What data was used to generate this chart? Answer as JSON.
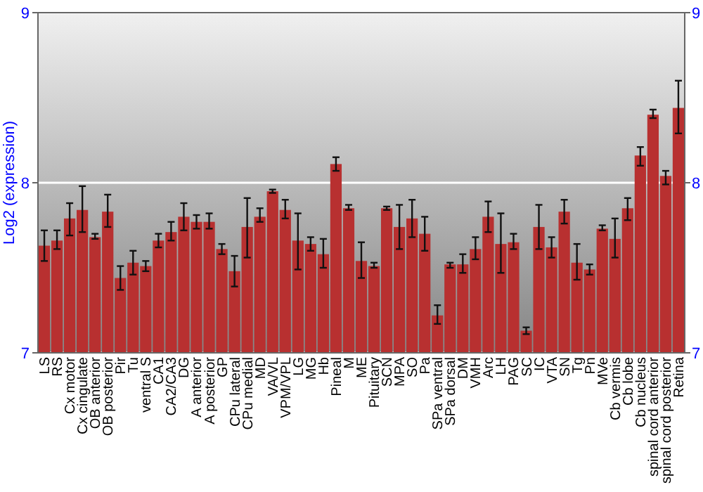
{
  "chart_data": {
    "type": "bar",
    "ylabel": "Log2 (expression)",
    "categories": [
      "LS",
      "RS",
      "Cx motor",
      "Cx cingulate",
      "OB anterior",
      "OB posterior",
      "Pir",
      "Tu",
      "ventral S",
      "CA1",
      "CA2/CA3",
      "DG",
      "A anterior",
      "A posterior",
      "GP",
      "CPu lateral",
      "CPu medial",
      "MD",
      "VA/VL",
      "VPM/VPL",
      "LG",
      "MG",
      "Hb",
      "Pineal",
      "M",
      "ME",
      "Pituitary",
      "SCN",
      "MPA",
      "SO",
      "Pa",
      "SPa ventral",
      "SPa dorsal",
      "DM",
      "VMH",
      "Arc",
      "LH",
      "PAG",
      "SC",
      "IC",
      "VTA",
      "SN",
      "Tg",
      "Pn",
      "MVe",
      "Cb vermis",
      "Cb lobe",
      "Cb nucleus",
      "spinal cord anterior",
      "spinal cord posterior",
      "Retina"
    ],
    "values": [
      7.63,
      7.66,
      7.79,
      7.84,
      7.68,
      7.83,
      7.44,
      7.53,
      7.51,
      7.66,
      7.71,
      7.8,
      7.77,
      7.77,
      7.61,
      7.48,
      7.74,
      7.8,
      7.95,
      7.84,
      7.66,
      7.64,
      7.58,
      8.11,
      7.85,
      7.54,
      7.51,
      7.85,
      7.74,
      7.79,
      7.7,
      7.22,
      7.52,
      7.52,
      7.61,
      7.8,
      7.64,
      7.65,
      7.13,
      7.74,
      7.62,
      7.83,
      7.53,
      7.49,
      7.73,
      7.67,
      7.85,
      8.16,
      8.4,
      8.04,
      8.44
    ],
    "errors": [
      [
        7.54,
        7.72
      ],
      [
        7.61,
        7.72
      ],
      [
        7.69,
        7.88
      ],
      [
        7.71,
        7.98
      ],
      [
        7.67,
        7.7
      ],
      [
        7.74,
        7.93
      ],
      [
        7.37,
        7.51
      ],
      [
        7.46,
        7.6
      ],
      [
        7.48,
        7.54
      ],
      [
        7.62,
        7.7
      ],
      [
        7.66,
        7.77
      ],
      [
        7.72,
        7.88
      ],
      [
        7.73,
        7.81
      ],
      [
        7.73,
        7.82
      ],
      [
        7.58,
        7.64
      ],
      [
        7.39,
        7.57
      ],
      [
        7.56,
        7.91
      ],
      [
        7.77,
        7.85
      ],
      [
        7.94,
        7.96
      ],
      [
        7.79,
        7.9
      ],
      [
        7.49,
        7.82
      ],
      [
        7.6,
        7.68
      ],
      [
        7.5,
        7.67
      ],
      [
        8.07,
        8.15
      ],
      [
        7.84,
        7.87
      ],
      [
        7.44,
        7.65
      ],
      [
        7.5,
        7.53
      ],
      [
        7.84,
        7.86
      ],
      [
        7.61,
        7.87
      ],
      [
        7.68,
        7.9
      ],
      [
        7.6,
        7.8
      ],
      [
        7.17,
        7.28
      ],
      [
        7.5,
        7.53
      ],
      [
        7.47,
        7.58
      ],
      [
        7.55,
        7.68
      ],
      [
        7.71,
        7.89
      ],
      [
        7.47,
        7.82
      ],
      [
        7.61,
        7.7
      ],
      [
        7.11,
        7.15
      ],
      [
        7.61,
        7.87
      ],
      [
        7.56,
        7.68
      ],
      [
        7.76,
        7.9
      ],
      [
        7.43,
        7.64
      ],
      [
        7.46,
        7.52
      ],
      [
        7.72,
        7.75
      ],
      [
        7.56,
        7.79
      ],
      [
        7.78,
        7.91
      ],
      [
        8.1,
        8.21
      ],
      [
        8.38,
        8.43
      ],
      [
        7.99,
        8.07
      ],
      [
        8.29,
        8.6
      ]
    ],
    "color": "#b83030",
    "ylim": [
      7,
      9
    ],
    "yticks": [
      7,
      8,
      9
    ],
    "y2lim": [
      7,
      9
    ],
    "y2ticks": [
      7,
      8,
      9
    ],
    "grid": "y"
  }
}
